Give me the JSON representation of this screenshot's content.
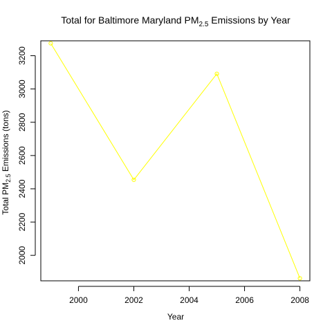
{
  "chart_data": {
    "type": "line",
    "title": {
      "prefix": "Total for Baltimore Maryland PM",
      "subscript": "2.5",
      "suffix": " Emissions by Year"
    },
    "xlabel": "Year",
    "ylabel": {
      "prefix": "Total PM",
      "subscript": "2.5",
      "suffix": " Emissions (tons)"
    },
    "x": [
      1999,
      2002,
      2005,
      2008
    ],
    "series": [
      {
        "values": [
          3274.18,
          2453.92,
          3091.35,
          1862.28
        ],
        "color": "#ffff00",
        "markers": "open-circle"
      }
    ],
    "xlim": [
      1998.64,
      2008.36
    ],
    "ylim": [
      1846.88,
      3289.58
    ],
    "xticks": [
      2000,
      2002,
      2004,
      2006,
      2008
    ],
    "yticks": [
      2000,
      2200,
      2400,
      2600,
      2800,
      3000,
      3200
    ],
    "grid": false,
    "legend": "none",
    "box": true
  }
}
